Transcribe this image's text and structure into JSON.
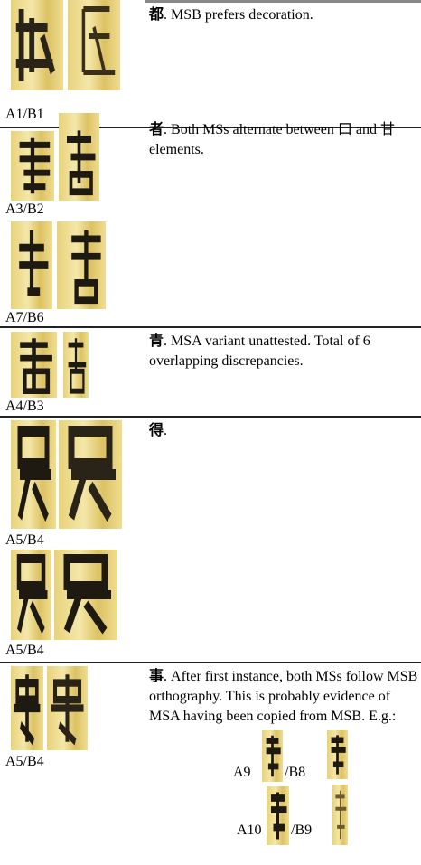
{
  "rows": [
    {
      "glyph": "都",
      "note": ". MSB prefers decoration.",
      "images": [
        {
          "label": "A1/B1"
        }
      ]
    },
    {
      "glyph": "者",
      "note": ". Both MSs alternate between 口 and 甘 elements.",
      "images": [
        {
          "label": "A3/B2"
        },
        {
          "label": "A7/B6"
        }
      ]
    },
    {
      "glyph": "青",
      "note": ". MSA variant unattested. Total of 6 overlapping discrepancies.",
      "images": [
        {
          "label": "A4/B3"
        }
      ]
    },
    {
      "glyph": "得",
      "note": ".",
      "images": [
        {
          "label": "A5/B4"
        },
        {
          "label": "A5/B4"
        }
      ]
    },
    {
      "glyph": "事",
      "note": ". After first instance, both MSs follow MSB orthography. This is probably evidence of MSA having been copied from MSB. E.g.:",
      "images": [
        {
          "label": "A5/B4"
        }
      ],
      "examples": [
        {
          "a": "A9",
          "b": "/B8"
        },
        {
          "a": "A10",
          "b": "/B9"
        }
      ]
    }
  ]
}
